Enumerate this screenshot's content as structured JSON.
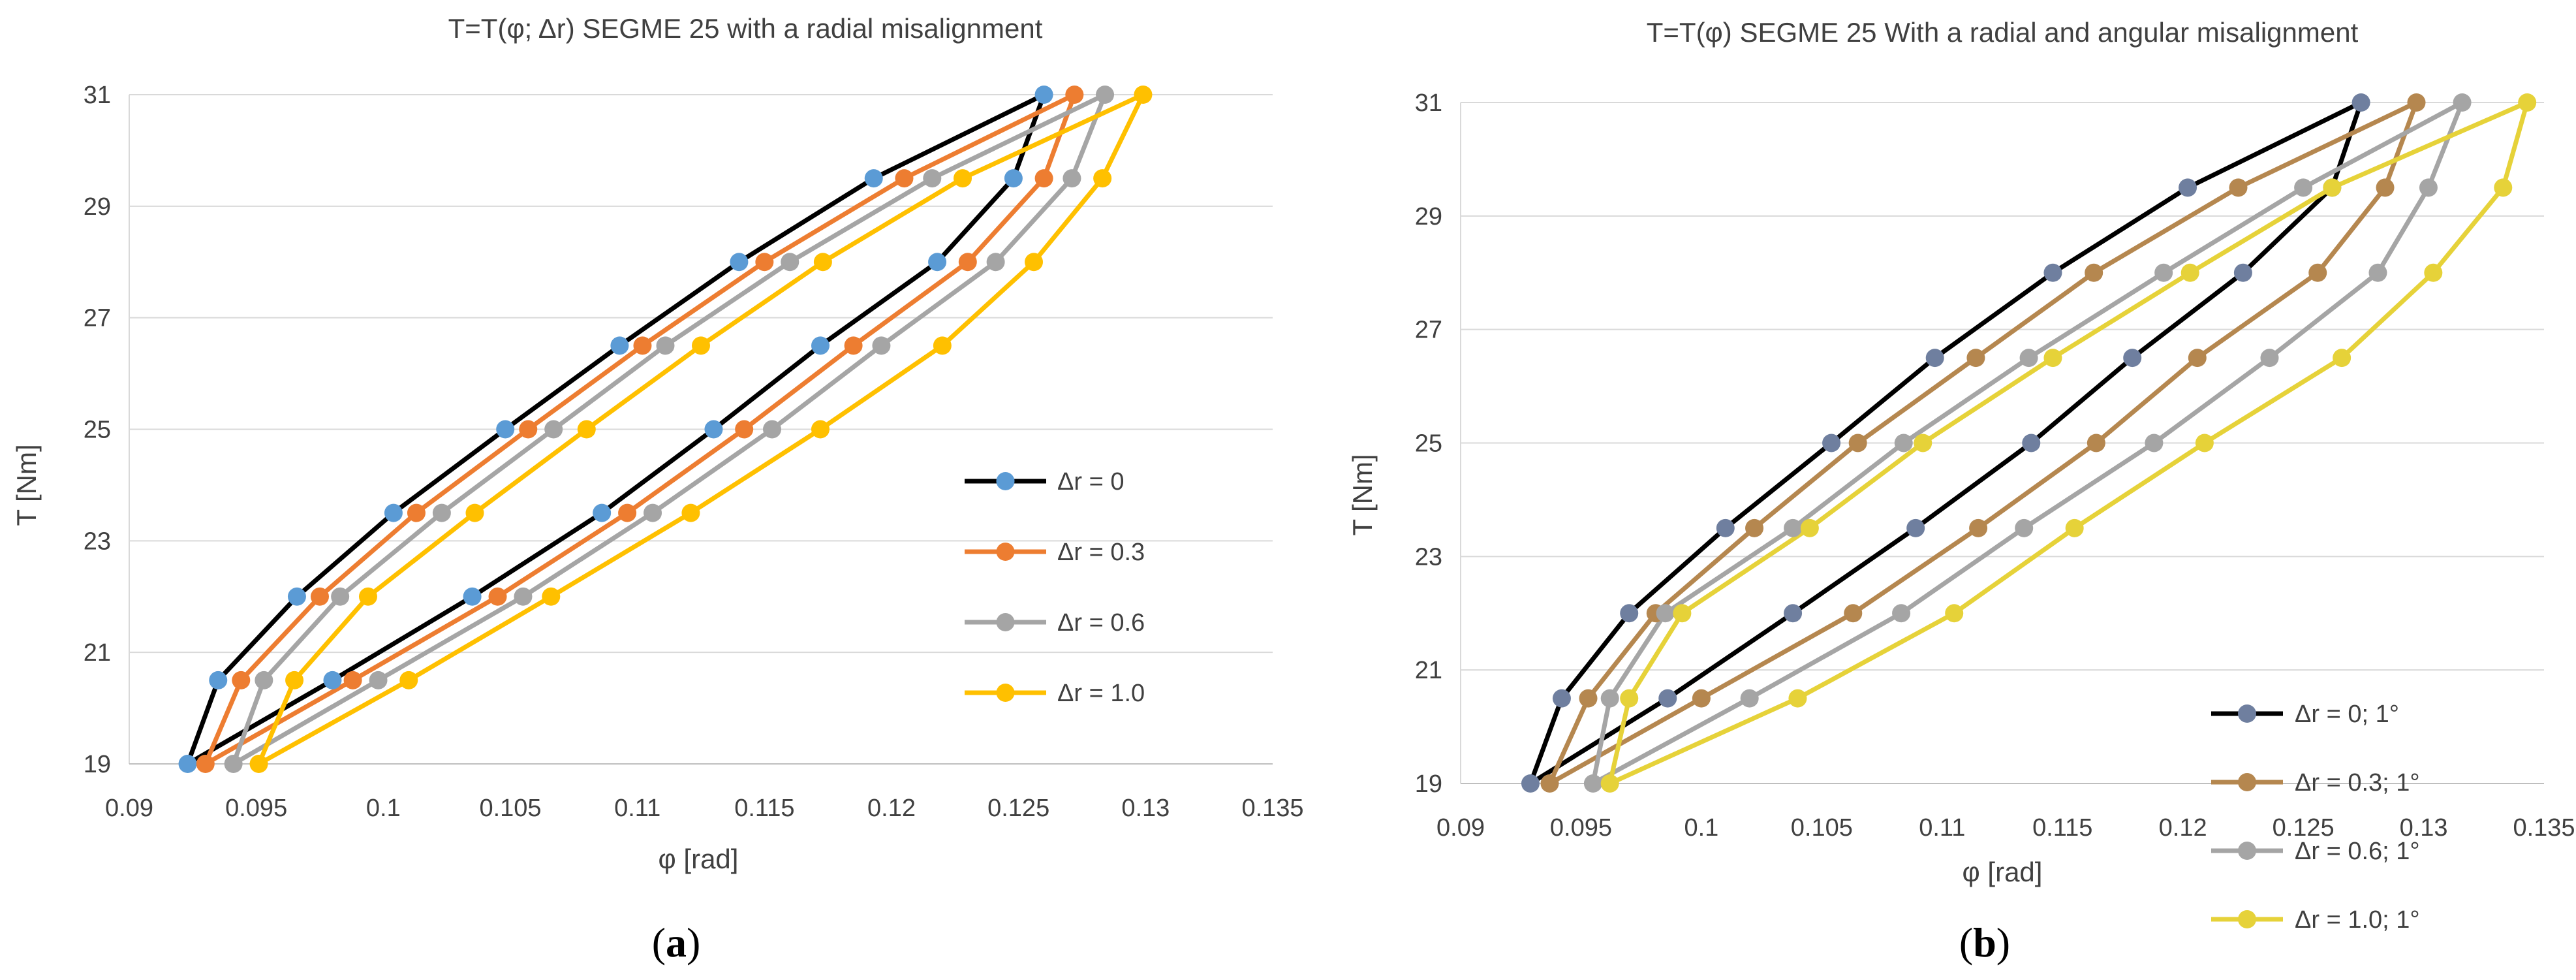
{
  "chart_data": [
    {
      "type": "line",
      "panel": "a",
      "caption_open": "(",
      "caption_letter": "a",
      "caption_close": ")",
      "title": "T=T(φ; Δr)  SEGME 25 with a radial misalignment",
      "xlabel": "φ [rad]",
      "ylabel": "T [Nm]",
      "xlim": [
        0.09,
        0.135
      ],
      "ylim": [
        19,
        31
      ],
      "xticks": [
        0.09,
        0.095,
        0.1,
        0.105,
        0.11,
        0.115,
        0.12,
        0.125,
        0.13,
        0.135
      ],
      "xtick_labels": [
        "0.09",
        "0.095",
        "0.1",
        "0.105",
        "0.11",
        "0.115",
        "0.12",
        "0.125",
        "0.13",
        "0.135"
      ],
      "yticks": [
        19,
        21,
        23,
        25,
        27,
        29,
        31
      ],
      "ytick_labels": [
        "19",
        "21",
        "23",
        "25",
        "27",
        "29",
        "31"
      ],
      "grid": "horizontal",
      "legend_position": "right",
      "series": [
        {
          "name": "Δr = 0",
          "line_color": "#000000",
          "marker_color": "#5b9bd5",
          "loading": [
            [
              0.0923,
              19
            ],
            [
              0.0935,
              20.5
            ],
            [
              0.0966,
              22
            ],
            [
              0.1004,
              23.5
            ],
            [
              0.1048,
              25
            ],
            [
              0.1093,
              26.5
            ],
            [
              0.114,
              28
            ],
            [
              0.1193,
              29.5
            ],
            [
              0.126,
              31
            ]
          ],
          "unloading": [
            [
              0.126,
              31
            ],
            [
              0.1248,
              29.5
            ],
            [
              0.1218,
              28
            ],
            [
              0.1172,
              26.5
            ],
            [
              0.113,
              25
            ],
            [
              0.1086,
              23.5
            ],
            [
              0.1035,
              22
            ],
            [
              0.098,
              20.5
            ],
            [
              0.0923,
              19
            ]
          ]
        },
        {
          "name": "Δr = 0.3",
          "line_color": "#ed7d31",
          "marker_color": "#ed7d31",
          "loading": [
            [
              0.093,
              19
            ],
            [
              0.0944,
              20.5
            ],
            [
              0.0975,
              22
            ],
            [
              0.1013,
              23.5
            ],
            [
              0.1057,
              25
            ],
            [
              0.1102,
              26.5
            ],
            [
              0.115,
              28
            ],
            [
              0.1205,
              29.5
            ],
            [
              0.1272,
              31
            ]
          ],
          "unloading": [
            [
              0.1272,
              31
            ],
            [
              0.126,
              29.5
            ],
            [
              0.123,
              28
            ],
            [
              0.1185,
              26.5
            ],
            [
              0.1142,
              25
            ],
            [
              0.1096,
              23.5
            ],
            [
              0.1045,
              22
            ],
            [
              0.0988,
              20.5
            ],
            [
              0.093,
              19
            ]
          ]
        },
        {
          "name": "Δr = 0.6",
          "line_color": "#a5a5a5",
          "marker_color": "#a5a5a5",
          "loading": [
            [
              0.0941,
              19
            ],
            [
              0.0953,
              20.5
            ],
            [
              0.0983,
              22
            ],
            [
              0.1023,
              23.5
            ],
            [
              0.1067,
              25
            ],
            [
              0.1111,
              26.5
            ],
            [
              0.116,
              28
            ],
            [
              0.1216,
              29.5
            ],
            [
              0.1284,
              31
            ]
          ],
          "unloading": [
            [
              0.1284,
              31
            ],
            [
              0.1271,
              29.5
            ],
            [
              0.1241,
              28
            ],
            [
              0.1196,
              26.5
            ],
            [
              0.1153,
              25
            ],
            [
              0.1106,
              23.5
            ],
            [
              0.1055,
              22
            ],
            [
              0.0998,
              20.5
            ],
            [
              0.0941,
              19
            ]
          ]
        },
        {
          "name": "Δr = 1.0",
          "line_color": "#ffc000",
          "marker_color": "#ffc000",
          "loading": [
            [
              0.0951,
              19
            ],
            [
              0.0965,
              20.5
            ],
            [
              0.0994,
              22
            ],
            [
              0.1036,
              23.5
            ],
            [
              0.108,
              25
            ],
            [
              0.1125,
              26.5
            ],
            [
              0.1173,
              28
            ],
            [
              0.1228,
              29.5
            ],
            [
              0.1299,
              31
            ]
          ],
          "unloading": [
            [
              0.1299,
              31
            ],
            [
              0.1283,
              29.5
            ],
            [
              0.1256,
              28
            ],
            [
              0.122,
              26.5
            ],
            [
              0.1172,
              25
            ],
            [
              0.1121,
              23.5
            ],
            [
              0.1066,
              22
            ],
            [
              0.101,
              20.5
            ],
            [
              0.0951,
              19
            ]
          ]
        }
      ]
    },
    {
      "type": "line",
      "panel": "b",
      "caption_open": "(",
      "caption_letter": "b",
      "caption_close": ")",
      "title": "T=T(φ)  SEGME 25 With a radial and angular misalignment",
      "xlabel": "φ [rad]",
      "ylabel": "T [Nm]",
      "xlim": [
        0.09,
        0.135
      ],
      "ylim": [
        19,
        31
      ],
      "xticks": [
        0.09,
        0.095,
        0.1,
        0.105,
        0.11,
        0.115,
        0.12,
        0.125,
        0.13,
        0.135
      ],
      "xtick_labels": [
        "0.09",
        "0.095",
        "0.1",
        "0.105",
        "0.11",
        "0.115",
        "0.12",
        "0.125",
        "0.13",
        "0.135"
      ],
      "yticks": [
        19,
        21,
        23,
        25,
        27,
        29,
        31
      ],
      "ytick_labels": [
        "19",
        "21",
        "23",
        "25",
        "27",
        "29",
        "31"
      ],
      "grid": "horizontal",
      "legend_position": "right",
      "series": [
        {
          "name": "Δr = 0; 1°",
          "line_color": "#000000",
          "marker_color": "#6f7f9f",
          "loading": [
            [
              0.0929,
              19
            ],
            [
              0.0942,
              20.5
            ],
            [
              0.097,
              22
            ],
            [
              0.101,
              23.5
            ],
            [
              0.1054,
              25
            ],
            [
              0.1097,
              26.5
            ],
            [
              0.1146,
              28
            ],
            [
              0.1202,
              29.5
            ],
            [
              0.1274,
              31
            ]
          ],
          "unloading": [
            [
              0.1274,
              31
            ],
            [
              0.1262,
              29.5
            ],
            [
              0.1225,
              28
            ],
            [
              0.1179,
              26.5
            ],
            [
              0.1137,
              25
            ],
            [
              0.1089,
              23.5
            ],
            [
              0.1038,
              22
            ],
            [
              0.0986,
              20.5
            ],
            [
              0.0929,
              19
            ]
          ]
        },
        {
          "name": "Δr = 0.3; 1°",
          "line_color": "#b5874f",
          "marker_color": "#b5874f",
          "loading": [
            [
              0.0937,
              19
            ],
            [
              0.0953,
              20.5
            ],
            [
              0.0981,
              22
            ],
            [
              0.1022,
              23.5
            ],
            [
              0.1065,
              25
            ],
            [
              0.1114,
              26.5
            ],
            [
              0.1163,
              28
            ],
            [
              0.1223,
              29.5
            ],
            [
              0.1297,
              31
            ]
          ],
          "unloading": [
            [
              0.1297,
              31
            ],
            [
              0.1284,
              29.5
            ],
            [
              0.1256,
              28
            ],
            [
              0.1206,
              26.5
            ],
            [
              0.1164,
              25
            ],
            [
              0.1115,
              23.5
            ],
            [
              0.1063,
              22
            ],
            [
              0.1,
              20.5
            ],
            [
              0.0937,
              19
            ]
          ]
        },
        {
          "name": "Δr = 0.6; 1°",
          "line_color": "#a5a5a5",
          "marker_color": "#a5a5a5",
          "loading": [
            [
              0.0955,
              19
            ],
            [
              0.0962,
              20.5
            ],
            [
              0.0985,
              22
            ],
            [
              0.1038,
              23.5
            ],
            [
              0.1084,
              25
            ],
            [
              0.1136,
              26.5
            ],
            [
              0.1192,
              28
            ],
            [
              0.125,
              29.5
            ],
            [
              0.1316,
              31
            ]
          ],
          "unloading": [
            [
              0.1316,
              31
            ],
            [
              0.1302,
              29.5
            ],
            [
              0.1281,
              28
            ],
            [
              0.1236,
              26.5
            ],
            [
              0.1188,
              25
            ],
            [
              0.1134,
              23.5
            ],
            [
              0.1083,
              22
            ],
            [
              0.102,
              20.5
            ],
            [
              0.0955,
              19
            ]
          ]
        },
        {
          "name": "Δr = 1.0; 1°",
          "line_color": "#e6d239",
          "marker_color": "#e6d239",
          "loading": [
            [
              0.0962,
              19
            ],
            [
              0.097,
              20.5
            ],
            [
              0.0992,
              22
            ],
            [
              0.1045,
              23.5
            ],
            [
              0.1092,
              25
            ],
            [
              0.1146,
              26.5
            ],
            [
              0.1203,
              28
            ],
            [
              0.1262,
              29.5
            ],
            [
              0.1343,
              31
            ]
          ],
          "unloading": [
            [
              0.1343,
              31
            ],
            [
              0.1333,
              29.5
            ],
            [
              0.1304,
              28
            ],
            [
              0.1266,
              26.5
            ],
            [
              0.1209,
              25
            ],
            [
              0.1155,
              23.5
            ],
            [
              0.1105,
              22
            ],
            [
              0.104,
              20.5
            ],
            [
              0.0962,
              19
            ]
          ]
        }
      ]
    }
  ]
}
